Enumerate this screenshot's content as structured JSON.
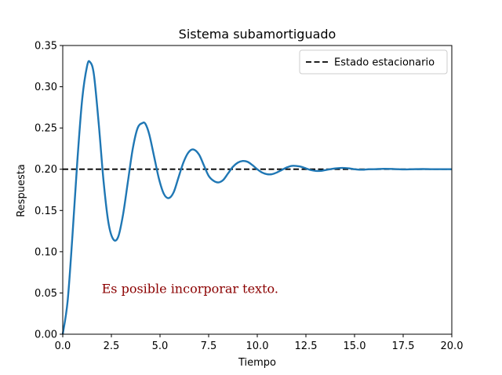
{
  "chart_data": {
    "type": "line",
    "title": "Sistema subamortiguado",
    "xlabel": "Tiempo",
    "ylabel": "Respuesta",
    "xlim": [
      0,
      20
    ],
    "ylim": [
      0,
      0.35
    ],
    "xticks": [
      "0.0",
      "2.5",
      "5.0",
      "7.5",
      "10.0",
      "12.5",
      "15.0",
      "17.5",
      "20.0"
    ],
    "yticks": [
      "0.00",
      "0.05",
      "0.10",
      "0.15",
      "0.20",
      "0.25",
      "0.30",
      "0.35"
    ],
    "grid": false,
    "legend_position": "top-right",
    "series": [
      {
        "name": "",
        "color": "#1f77b4",
        "style": "solid",
        "x": [
          0,
          0.25,
          0.5,
          0.75,
          1.0,
          1.25,
          1.4,
          1.6,
          1.85,
          2.1,
          2.35,
          2.6,
          2.85,
          3.1,
          3.35,
          3.6,
          3.85,
          4.1,
          4.25,
          4.45,
          4.7,
          4.95,
          5.2,
          5.45,
          5.7,
          5.95,
          6.2,
          6.45,
          6.7,
          7.0,
          7.25,
          7.5,
          7.75,
          8.0,
          8.25,
          8.5,
          8.75,
          9.0,
          9.25,
          9.5,
          9.75,
          10.0,
          10.25,
          10.5,
          10.75,
          11.0,
          11.25,
          11.5,
          11.75,
          12.0,
          12.25,
          12.5,
          12.75,
          13.0,
          13.25,
          13.5,
          13.75,
          14.0,
          14.25,
          14.5,
          14.75,
          15.0,
          15.25,
          15.5,
          15.75,
          16.0,
          16.5,
          17.0,
          17.5,
          18.0,
          18.5,
          19.0,
          19.5,
          20.0
        ],
        "y": [
          0.0,
          0.04,
          0.12,
          0.21,
          0.285,
          0.325,
          0.33,
          0.315,
          0.255,
          0.185,
          0.135,
          0.115,
          0.118,
          0.145,
          0.185,
          0.225,
          0.25,
          0.256,
          0.255,
          0.242,
          0.215,
          0.188,
          0.17,
          0.165,
          0.172,
          0.19,
          0.208,
          0.22,
          0.224,
          0.218,
          0.205,
          0.192,
          0.186,
          0.184,
          0.187,
          0.195,
          0.203,
          0.208,
          0.21,
          0.209,
          0.205,
          0.2,
          0.196,
          0.194,
          0.194,
          0.196,
          0.199,
          0.202,
          0.204,
          0.204,
          0.203,
          0.201,
          0.199,
          0.198,
          0.198,
          0.199,
          0.2,
          0.201,
          0.2015,
          0.2015,
          0.201,
          0.2,
          0.1995,
          0.1995,
          0.2,
          0.2,
          0.2005,
          0.2003,
          0.1998,
          0.2,
          0.2002,
          0.2,
          0.2,
          0.2
        ]
      },
      {
        "name": "Estado estacionario",
        "color": "#000000",
        "style": "dashed",
        "x": [
          0,
          20
        ],
        "y": [
          0.2,
          0.2
        ]
      }
    ],
    "annotations": [
      {
        "text": "Es posible incorporar texto.",
        "x": 2.0,
        "y": 0.05,
        "color": "#8b0000"
      }
    ]
  }
}
